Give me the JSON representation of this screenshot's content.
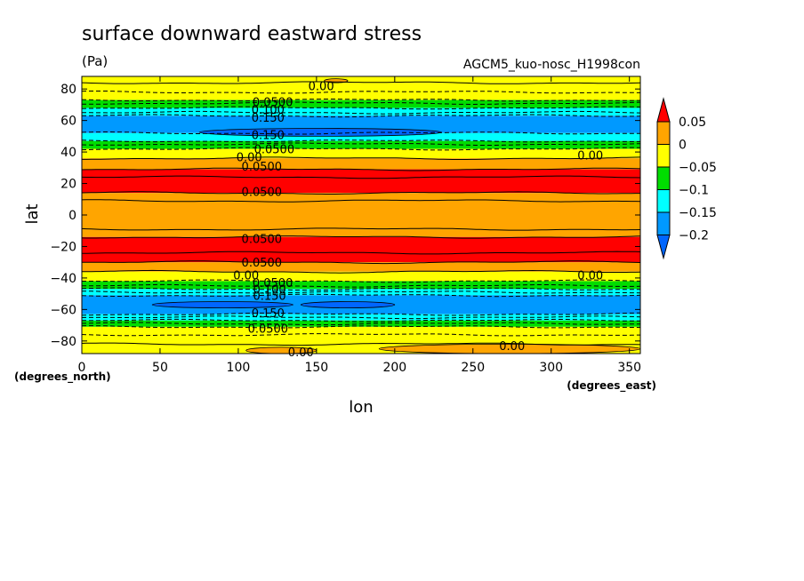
{
  "chart_data": {
    "type": "heatmap",
    "title": "surface downward eastward stress",
    "units": "(Pa)",
    "run_label": "AGCM5_kuo-nosc_H1998con",
    "xlabel": "lon",
    "ylabel": "lat",
    "x_units": "(degrees_east)",
    "y_units": "(degrees_north)",
    "xlim": [
      0,
      357
    ],
    "ylim": [
      -88,
      88
    ],
    "x_ticks": [
      0,
      50,
      100,
      150,
      200,
      250,
      300,
      350
    ],
    "y_ticks": [
      80,
      60,
      40,
      20,
      0,
      -20,
      -40,
      -60,
      -80
    ],
    "colorbar": {
      "levels": [
        0.05,
        0,
        -0.05,
        -0.1,
        -0.15,
        -0.2
      ],
      "level_labels": [
        "0.05",
        "0",
        "−0.05",
        "−0.1",
        "−0.15",
        "−0.2"
      ],
      "colors": {
        "above_0.05": "#ff0000",
        "0_to_0.05": "#ffa500",
        "-0.05_to_0": "#ffff00",
        "-0.1_to_-0.05": "#00dd00",
        "-0.15_to_-0.1": "#00ffff",
        "-0.2_to_-0.15": "#0099ff",
        "below_-0.2": "#0066ff"
      }
    },
    "bands": [
      {
        "lat_top": 88,
        "lat_bottom": 84,
        "color": "#ffff00"
      },
      {
        "lat_top": 84,
        "lat_bottom": 73,
        "color": "#ffff00"
      },
      {
        "lat_top": 73,
        "lat_bottom": 68,
        "color": "#00dd00"
      },
      {
        "lat_top": 68,
        "lat_bottom": 63,
        "color": "#00ffff"
      },
      {
        "lat_top": 63,
        "lat_bottom": 52,
        "color": "#0099ff"
      },
      {
        "lat_top": 52,
        "lat_bottom": 47,
        "color": "#00ffff"
      },
      {
        "lat_top": 47,
        "lat_bottom": 42,
        "color": "#00dd00"
      },
      {
        "lat_top": 42,
        "lat_bottom": 36,
        "color": "#ffff00"
      },
      {
        "lat_top": 36,
        "lat_bottom": 29,
        "color": "#ffa500"
      },
      {
        "lat_top": 29,
        "lat_bottom": 14,
        "color": "#ff0000"
      },
      {
        "lat_top": 14,
        "lat_bottom": -14,
        "color": "#ffa500"
      },
      {
        "lat_top": -14,
        "lat_bottom": -30,
        "color": "#ff0000"
      },
      {
        "lat_top": -30,
        "lat_bottom": -36,
        "color": "#ffa500"
      },
      {
        "lat_top": -36,
        "lat_bottom": -42,
        "color": "#ffff00"
      },
      {
        "lat_top": -42,
        "lat_bottom": -47,
        "color": "#00dd00"
      },
      {
        "lat_top": -47,
        "lat_bottom": -51,
        "color": "#00ffff"
      },
      {
        "lat_top": -51,
        "lat_bottom": -63,
        "color": "#0099ff"
      },
      {
        "lat_top": -63,
        "lat_bottom": -67,
        "color": "#00ffff"
      },
      {
        "lat_top": -67,
        "lat_bottom": -71,
        "color": "#00dd00"
      },
      {
        "lat_top": -71,
        "lat_bottom": -88,
        "color": "#ffff00"
      }
    ],
    "patches": [
      {
        "lon": [
          155,
          170
        ],
        "lat": [
          86.5,
          84
        ],
        "color": "#ffa500"
      },
      {
        "lon": [
          105,
          150
        ],
        "lat": [
          -84,
          -88
        ],
        "color": "#ffa500"
      },
      {
        "lon": [
          190,
          357
        ],
        "lat": [
          -82,
          -88
        ],
        "color": "#ffa500"
      },
      {
        "lon": [
          75,
          230
        ],
        "lat": [
          55,
          50
        ],
        "color": "#0066ff"
      },
      {
        "lon": [
          45,
          135
        ],
        "lat": [
          -55,
          -59
        ],
        "color": "#0066ff"
      },
      {
        "lon": [
          140,
          200
        ],
        "lat": [
          -55,
          -59
        ],
        "color": "#0066ff"
      }
    ],
    "contours_solid_lat": [
      84,
      36,
      29,
      24,
      14,
      9,
      -9,
      -14,
      -24,
      -30,
      -36,
      -82
    ],
    "contours_dashed_lat": [
      78,
      73,
      71,
      68,
      65,
      63,
      52,
      47,
      45,
      42,
      -42,
      -45,
      -47,
      -49,
      -51,
      -63,
      -65,
      -67,
      -69,
      -71,
      -76
    ],
    "contour_labels": [
      {
        "text": "0.00",
        "lon": 153,
        "lat": 82
      },
      {
        "text": "0.0500",
        "lon": 122,
        "lat": 72
      },
      {
        "text": "0.100",
        "lon": 119,
        "lat": 67
      },
      {
        "text": "0.150",
        "lon": 119,
        "lat": 62
      },
      {
        "text": "0.150",
        "lon": 119,
        "lat": 51
      },
      {
        "text": "0.0500",
        "lon": 123,
        "lat": 42
      },
      {
        "text": "0.00",
        "lon": 107,
        "lat": 37
      },
      {
        "text": "0.0500",
        "lon": 115,
        "lat": 31
      },
      {
        "text": "0.0500",
        "lon": 115,
        "lat": 15
      },
      {
        "text": "0.00",
        "lon": 325,
        "lat": 38
      },
      {
        "text": "0.0500",
        "lon": 115,
        "lat": -15
      },
      {
        "text": "0.0500",
        "lon": 115,
        "lat": -30
      },
      {
        "text": "0.00",
        "lon": 105,
        "lat": -38
      },
      {
        "text": "0.0500",
        "lon": 122,
        "lat": -43
      },
      {
        "text": "0.100",
        "lon": 120,
        "lat": -47
      },
      {
        "text": "0.150",
        "lon": 120,
        "lat": -51
      },
      {
        "text": "0.150",
        "lon": 119,
        "lat": -62
      },
      {
        "text": "0.0500",
        "lon": 119,
        "lat": -72
      },
      {
        "text": "0.00",
        "lon": 325,
        "lat": -38
      },
      {
        "text": "0.00",
        "lon": 275,
        "lat": -83
      },
      {
        "text": "0.00",
        "lon": 140,
        "lat": -87
      }
    ]
  }
}
